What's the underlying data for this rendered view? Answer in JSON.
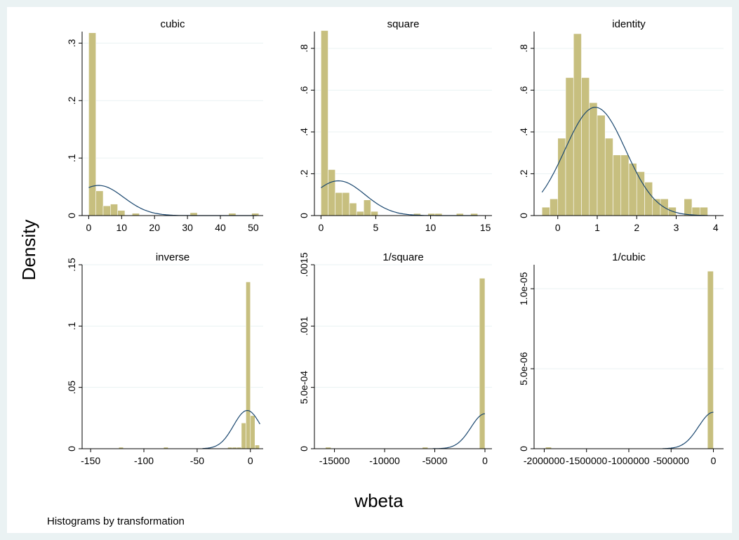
{
  "chart_data": {
    "type": "bar",
    "ylabel": "Density",
    "xlabel": "wbeta",
    "note": "Histograms by transformation",
    "colors": {
      "bar": "#c7bf7f",
      "curve": "#1a476f",
      "background": "#eaf2f3",
      "plot": "#ffffff"
    },
    "grid": true,
    "panels": [
      {
        "title": "cubic",
        "xlim": [
          -2,
          53
        ],
        "ylim": [
          0,
          0.32
        ],
        "xticks": [
          {
            "v": 0,
            "label": "0"
          },
          {
            "v": 10,
            "label": "10"
          },
          {
            "v": 20,
            "label": "20"
          },
          {
            "v": 30,
            "label": "30"
          },
          {
            "v": 40,
            "label": "40"
          },
          {
            "v": 50,
            "label": "50"
          }
        ],
        "yticks": [
          {
            "v": 0,
            "label": "0"
          },
          {
            "v": 0.1,
            "label": ".1"
          },
          {
            "v": 0.2,
            "label": ".2"
          },
          {
            "v": 0.3,
            "label": ".3"
          }
        ],
        "bins": [
          {
            "x0": 0,
            "x1": 2.2,
            "h": 0.318
          },
          {
            "x0": 2.2,
            "x1": 4.4,
            "h": 0.043
          },
          {
            "x0": 4.4,
            "x1": 6.6,
            "h": 0.017
          },
          {
            "x0": 6.6,
            "x1": 8.8,
            "h": 0.02
          },
          {
            "x0": 8.8,
            "x1": 11,
            "h": 0.009
          },
          {
            "x0": 13.2,
            "x1": 15.4,
            "h": 0.004
          },
          {
            "x0": 30.8,
            "x1": 33,
            "h": 0.005
          },
          {
            "x0": 42.5,
            "x1": 44.7,
            "h": 0.004
          },
          {
            "x0": 49.5,
            "x1": 51.7,
            "h": 0.004
          }
        ],
        "curve": {
          "mu": 3,
          "sigma": 7.6,
          "from": 0,
          "to": 51
        }
      },
      {
        "title": "square",
        "xlim": [
          -0.6,
          15.6
        ],
        "ylim": [
          0,
          0.88
        ],
        "xticks": [
          {
            "v": 0,
            "label": "0"
          },
          {
            "v": 5,
            "label": "5"
          },
          {
            "v": 10,
            "label": "10"
          },
          {
            "v": 15,
            "label": "15"
          }
        ],
        "yticks": [
          {
            "v": 0,
            "label": "0"
          },
          {
            "v": 0.2,
            "label": ".2"
          },
          {
            "v": 0.4,
            "label": ".4"
          },
          {
            "v": 0.6,
            "label": ".6"
          },
          {
            "v": 0.8,
            "label": ".8"
          }
        ],
        "bins": [
          {
            "x0": 0,
            "x1": 0.65,
            "h": 0.885
          },
          {
            "x0": 0.65,
            "x1": 1.3,
            "h": 0.22
          },
          {
            "x0": 1.3,
            "x1": 1.95,
            "h": 0.11
          },
          {
            "x0": 1.95,
            "x1": 2.6,
            "h": 0.11
          },
          {
            "x0": 2.6,
            "x1": 3.25,
            "h": 0.06
          },
          {
            "x0": 3.25,
            "x1": 3.9,
            "h": 0.02
          },
          {
            "x0": 3.9,
            "x1": 4.55,
            "h": 0.075
          },
          {
            "x0": 4.55,
            "x1": 5.2,
            "h": 0.02
          },
          {
            "x0": 8.45,
            "x1": 9.1,
            "h": 0.01
          },
          {
            "x0": 9.75,
            "x1": 10.4,
            "h": 0.01
          },
          {
            "x0": 10.4,
            "x1": 11.05,
            "h": 0.01
          },
          {
            "x0": 12.35,
            "x1": 13,
            "h": 0.01
          },
          {
            "x0": 13.65,
            "x1": 14.3,
            "h": 0.01
          }
        ],
        "curve": {
          "mu": 1.6,
          "sigma": 2.4,
          "from": 0,
          "to": 14.3
        }
      },
      {
        "title": "identity",
        "xlim": [
          -0.6,
          4.2
        ],
        "ylim": [
          0,
          0.88
        ],
        "xticks": [
          {
            "v": 0,
            "label": "0"
          },
          {
            "v": 1,
            "label": "1"
          },
          {
            "v": 2,
            "label": "2"
          },
          {
            "v": 3,
            "label": "3"
          },
          {
            "v": 4,
            "label": "4"
          }
        ],
        "yticks": [
          {
            "v": 0,
            "label": "0"
          },
          {
            "v": 0.2,
            "label": ".2"
          },
          {
            "v": 0.4,
            "label": ".4"
          },
          {
            "v": 0.6,
            "label": ".6"
          },
          {
            "v": 0.8,
            "label": ".8"
          }
        ],
        "bins": [
          {
            "x0": -0.4,
            "x1": -0.2,
            "h": 0.04
          },
          {
            "x0": -0.2,
            "x1": 0,
            "h": 0.08
          },
          {
            "x0": 0,
            "x1": 0.2,
            "h": 0.37
          },
          {
            "x0": 0.2,
            "x1": 0.4,
            "h": 0.66
          },
          {
            "x0": 0.4,
            "x1": 0.6,
            "h": 0.87
          },
          {
            "x0": 0.6,
            "x1": 0.8,
            "h": 0.66
          },
          {
            "x0": 0.8,
            "x1": 1,
            "h": 0.54
          },
          {
            "x0": 1,
            "x1": 1.2,
            "h": 0.48
          },
          {
            "x0": 1.2,
            "x1": 1.4,
            "h": 0.37
          },
          {
            "x0": 1.4,
            "x1": 1.6,
            "h": 0.29
          },
          {
            "x0": 1.6,
            "x1": 1.8,
            "h": 0.29
          },
          {
            "x0": 1.8,
            "x1": 2,
            "h": 0.25
          },
          {
            "x0": 2,
            "x1": 2.2,
            "h": 0.21
          },
          {
            "x0": 2.2,
            "x1": 2.4,
            "h": 0.16
          },
          {
            "x0": 2.4,
            "x1": 2.6,
            "h": 0.08
          },
          {
            "x0": 2.6,
            "x1": 2.8,
            "h": 0.08
          },
          {
            "x0": 2.8,
            "x1": 3,
            "h": 0.04
          },
          {
            "x0": 3.2,
            "x1": 3.4,
            "h": 0.08
          },
          {
            "x0": 3.4,
            "x1": 3.6,
            "h": 0.04
          },
          {
            "x0": 3.6,
            "x1": 3.8,
            "h": 0.04
          }
        ],
        "curve": {
          "mu": 0.95,
          "sigma": 0.77,
          "from": -0.4,
          "to": 3.8
        }
      },
      {
        "title": "inverse",
        "xlim": [
          -158,
          12
        ],
        "ylim": [
          0,
          0.15
        ],
        "xticks": [
          {
            "v": -150,
            "label": "-150"
          },
          {
            "v": -100,
            "label": "-100"
          },
          {
            "v": -50,
            "label": "-50"
          },
          {
            "v": 0,
            "label": "0"
          }
        ],
        "yticks": [
          {
            "v": 0,
            "label": "0"
          },
          {
            "v": 0.05,
            "label": ".05"
          },
          {
            "v": 0.1,
            "label": ".1"
          },
          {
            "v": 0.15,
            "label": ".15"
          }
        ],
        "bins": [
          {
            "x0": -123.6,
            "x1": -119.3,
            "h": 0.0012
          },
          {
            "x0": -81.5,
            "x1": -77.2,
            "h": 0.0012
          },
          {
            "x0": -21.3,
            "x1": -17,
            "h": 0.0012
          },
          {
            "x0": -17,
            "x1": -12.8,
            "h": 0.0012
          },
          {
            "x0": -12.8,
            "x1": -8.5,
            "h": 0.0012
          },
          {
            "x0": -8.5,
            "x1": -4.2,
            "h": 0.021
          },
          {
            "x0": -4.2,
            "x1": 0,
            "h": 0.136
          },
          {
            "x0": 0,
            "x1": 4.3,
            "h": 0.027
          },
          {
            "x0": 4.3,
            "x1": 8.5,
            "h": 0.003
          }
        ],
        "curve": {
          "mu": -3,
          "sigma": 12.8,
          "from": -45,
          "to": 9
        }
      },
      {
        "title": "1/square",
        "xlim": [
          -17000,
          700
        ],
        "ylim": [
          0,
          0.0015
        ],
        "xticks": [
          {
            "v": -15000,
            "label": "-15000"
          },
          {
            "v": -10000,
            "label": "-10000"
          },
          {
            "v": -5000,
            "label": "-5000"
          },
          {
            "v": 0,
            "label": "0"
          }
        ],
        "yticks": [
          {
            "v": 0,
            "label": "0"
          },
          {
            "v": 0.0005,
            "label": "5.0e-04"
          },
          {
            "v": 0.001,
            "label": ".001"
          },
          {
            "v": 0.0015,
            "label": ".0015"
          }
        ],
        "bins": [
          {
            "x0": -15900,
            "x1": -15350,
            "h": 1.2e-05
          },
          {
            "x0": -6240,
            "x1": -5690,
            "h": 1.2e-05
          },
          {
            "x0": -550,
            "x1": 0,
            "h": 0.00139
          }
        ],
        "curve": {
          "mu": 0,
          "sigma": 1400,
          "from": -5200,
          "to": 0
        }
      },
      {
        "title": "1/cubic",
        "xlim": [
          -2120000,
          120000
        ],
        "ylim": [
          0,
          1.15e-05
        ],
        "xticks": [
          {
            "v": -2000000,
            "label": "-2000000"
          },
          {
            "v": -1500000,
            "label": "-1500000"
          },
          {
            "v": -1000000,
            "label": "-1000000"
          },
          {
            "v": -500000,
            "label": "-500000"
          },
          {
            "v": 0,
            "label": "0"
          }
        ],
        "yticks": [
          {
            "v": 0,
            "label": "0"
          },
          {
            "v": 5e-06,
            "label": "5.0e-06"
          },
          {
            "v": 1e-05,
            "label": "1.0e-05"
          }
        ],
        "bins": [
          {
            "x0": -1985000,
            "x1": -1915000,
            "h": 1e-07
          },
          {
            "x0": -70000,
            "x1": 0,
            "h": 1.11e-05
          }
        ],
        "curve": {
          "mu": 0,
          "sigma": 175000,
          "from": -600000,
          "to": 0
        }
      }
    ]
  }
}
